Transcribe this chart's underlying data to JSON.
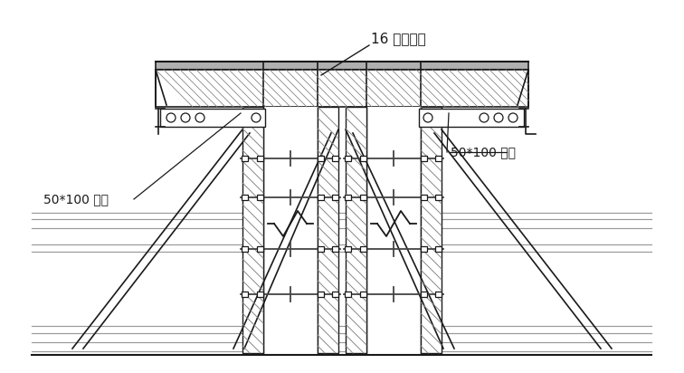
{
  "label_top": "16 厚胶合板",
  "label_left": "50*100 木方",
  "label_right": "50*100 木方",
  "bg_color": "#ffffff",
  "line_color": "#1a1a1a",
  "gray_color": "#b0b0b0",
  "hatch_color": "#888888",
  "fig_width": 7.56,
  "fig_height": 4.12,
  "dpi": 100
}
